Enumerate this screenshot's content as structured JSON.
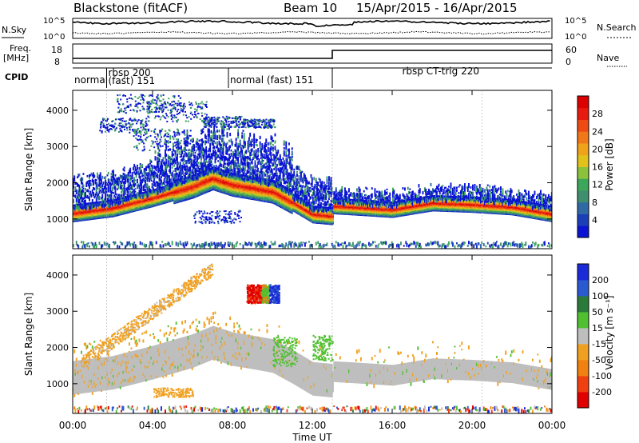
{
  "header": {
    "station": "Blackstone (fitACF)",
    "beam": "Beam 10",
    "dates": "15/Apr/2015 - 16/Apr/2015"
  },
  "summary": {
    "left_labels": {
      "nsky": "N.Sky",
      "freq": "Freq.",
      "freq_unit": "[MHz]",
      "cpid": "CPID"
    },
    "right_labels": {
      "nsearch": "N.Search",
      "nave": "Nave"
    },
    "left_ticks_noise": [
      "10^5",
      "10^0"
    ],
    "right_ticks_noise": [
      "10^5",
      "10^0"
    ],
    "left_ticks_freq": [
      "18",
      "8"
    ],
    "right_ticks_freq": [
      "60",
      "0"
    ],
    "cpid_segments": [
      {
        "start": 0.0,
        "end": 1.7,
        "label": "normal",
        "label2": ""
      },
      {
        "start": 1.7,
        "end": 7.8,
        "label": "rbsp 200",
        "label2": "(fast) 151"
      },
      {
        "start": 7.8,
        "end": 13.0,
        "label": "normal (fast) 151",
        "label2": ""
      },
      {
        "start": 13.0,
        "end": 20.5,
        "label": "rbsp CT-trig 220",
        "label2": ""
      }
    ],
    "freq_step_hour": 13.0
  },
  "colorbars": {
    "power": {
      "label": "Power [dB]",
      "ticks": [
        "28",
        "24",
        "20",
        "16",
        "12",
        "8",
        "4"
      ],
      "colors": [
        "#0a14d2",
        "#1b3fb8",
        "#2f6aa6",
        "#3f8f6f",
        "#3ca65a",
        "#8cc23b",
        "#e0c21a",
        "#f0a21a",
        "#f07818",
        "#ee4a14",
        "#e81a10",
        "#dd0000"
      ]
    },
    "velocity": {
      "label": "Velocity [m s⁻¹]",
      "ticks": [
        "200",
        "100",
        "50",
        "15",
        "-15",
        "-50",
        "-100",
        "-200"
      ],
      "colors": [
        "#1a2ad8",
        "#2a5ad0",
        "#2a7a3a",
        "#50c030",
        "#bebebe",
        "#f0a020",
        "#f08010",
        "#f04010",
        "#e00000"
      ]
    }
  },
  "axes": {
    "ylabel": "Slant Range [km]",
    "xlabel": "Time UT",
    "yticks": [
      "1000",
      "2000",
      "3000",
      "4000"
    ],
    "xticks": [
      "00:00",
      "04:00",
      "08:00",
      "12:00",
      "16:00",
      "20:00",
      "00:00"
    ]
  },
  "chart_data": [
    {
      "type": "heatmap",
      "title": "Power",
      "ylabel": "Slant Range [km]",
      "xlabel": "Time UT",
      "xlim": [
        0,
        24
      ],
      "ylim": [
        180,
        4550
      ],
      "colorbar": {
        "label": "Power [dB]",
        "range": [
          0,
          30
        ]
      },
      "band_center_km": [
        [
          0,
          1080
        ],
        [
          2,
          1220
        ],
        [
          4,
          1500
        ],
        [
          6,
          1820
        ],
        [
          7,
          2050
        ],
        [
          8,
          1870
        ],
        [
          9,
          1780
        ],
        [
          10,
          1680
        ],
        [
          11,
          1380
        ],
        [
          12,
          1050
        ],
        [
          13,
          1000
        ],
        [
          13.05,
          1280
        ],
        [
          14,
          1250
        ],
        [
          16,
          1180
        ],
        [
          18,
          1360
        ],
        [
          20,
          1320
        ],
        [
          22,
          1250
        ],
        [
          24,
          1060
        ]
      ]
    },
    {
      "type": "heatmap",
      "title": "Velocity",
      "ylabel": "Slant Range [km]",
      "xlabel": "Time UT",
      "xlim": [
        0,
        24
      ],
      "ylim": [
        180,
        4550
      ],
      "colorbar": {
        "label": "Velocity [m s⁻¹]",
        "range": [
          -250,
          250
        ]
      },
      "band_center_km": [
        [
          0,
          1080
        ],
        [
          2,
          1220
        ],
        [
          4,
          1500
        ],
        [
          6,
          1820
        ],
        [
          7,
          2050
        ],
        [
          8,
          1870
        ],
        [
          9,
          1780
        ],
        [
          10,
          1680
        ],
        [
          11,
          1380
        ],
        [
          12,
          1050
        ],
        [
          13,
          1000
        ],
        [
          13.05,
          1280
        ],
        [
          14,
          1250
        ],
        [
          16,
          1180
        ],
        [
          18,
          1360
        ],
        [
          20,
          1320
        ],
        [
          22,
          1250
        ],
        [
          24,
          1060
        ]
      ]
    }
  ]
}
